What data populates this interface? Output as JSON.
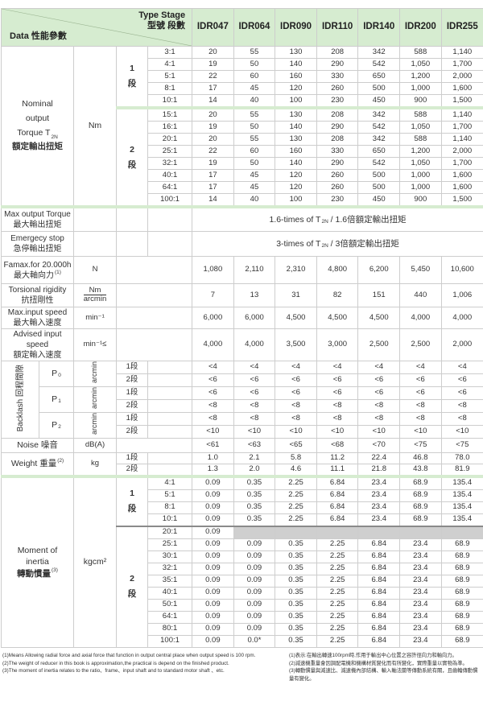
{
  "header": {
    "data_label": "Data 性能參數",
    "type_stage_en": "Type Stage",
    "type_stage_zh": "型號 段數",
    "models": [
      "IDR047",
      "IDR064",
      "IDR090",
      "IDR110",
      "IDR140",
      "IDR200",
      "IDR255"
    ],
    "accent_color": "#d6ecd0"
  },
  "torque": {
    "label_1": "Nominal",
    "label_2": "output",
    "label_3": "Torque T",
    "label_3_sub": "2N",
    "label_4": "額定輸出扭矩",
    "unit": "Nm",
    "stage1_num": "1",
    "stage1_char": "段",
    "stage2_num": "2",
    "stage2_char": "段",
    "stage1": [
      {
        "ratio": "3:1",
        "values": [
          "20",
          "55",
          "130",
          "208",
          "342",
          "588",
          "1,140"
        ]
      },
      {
        "ratio": "4:1",
        "values": [
          "19",
          "50",
          "140",
          "290",
          "542",
          "1,050",
          "1,700"
        ]
      },
      {
        "ratio": "5:1",
        "values": [
          "22",
          "60",
          "160",
          "330",
          "650",
          "1,200",
          "2,000"
        ]
      },
      {
        "ratio": "8:1",
        "values": [
          "17",
          "45",
          "120",
          "260",
          "500",
          "1,000",
          "1,600"
        ]
      },
      {
        "ratio": "10:1",
        "values": [
          "14",
          "40",
          "100",
          "230",
          "450",
          "900",
          "1,500"
        ]
      }
    ],
    "stage2": [
      {
        "ratio": "15:1",
        "values": [
          "20",
          "55",
          "130",
          "208",
          "342",
          "588",
          "1,140"
        ]
      },
      {
        "ratio": "16:1",
        "values": [
          "19",
          "50",
          "140",
          "290",
          "542",
          "1,050",
          "1,700"
        ]
      },
      {
        "ratio": "20:1",
        "values": [
          "20",
          "55",
          "130",
          "208",
          "342",
          "588",
          "1,140"
        ]
      },
      {
        "ratio": "25:1",
        "values": [
          "22",
          "60",
          "160",
          "330",
          "650",
          "1,200",
          "2,000"
        ]
      },
      {
        "ratio": "32:1",
        "values": [
          "19",
          "50",
          "140",
          "290",
          "542",
          "1,050",
          "1,700"
        ]
      },
      {
        "ratio": "40:1",
        "values": [
          "17",
          "45",
          "120",
          "260",
          "500",
          "1,000",
          "1,600"
        ]
      },
      {
        "ratio": "64:1",
        "values": [
          "17",
          "45",
          "120",
          "260",
          "500",
          "1,000",
          "1,600"
        ]
      },
      {
        "ratio": "100:1",
        "values": [
          "14",
          "40",
          "100",
          "230",
          "450",
          "900",
          "1,500"
        ]
      }
    ]
  },
  "max_torque": {
    "label_en": "Max output Torque",
    "label_zh": "最大輸出扭矩",
    "value_pre": "1.6-times of T",
    "value_sub": "2N",
    "value_post": " / 1.6倍額定輸出扭矩"
  },
  "emergency_stop": {
    "label_en": "Emergecy stop",
    "label_zh": "急停輸出扭矩",
    "value_pre": "3-times of T",
    "value_sub": "2N",
    "value_post": " / 3倍額定輸出扭矩"
  },
  "famax": {
    "label_en": "Famax.for 20.000h",
    "label_zh": "最大軸向力",
    "sup": "(1)",
    "unit": "N",
    "values": [
      "1,080",
      "2,110",
      "2,310",
      "4,800",
      "6,200",
      "5,450",
      "10,600"
    ]
  },
  "torsional": {
    "label_en": "Torsional rigidity",
    "label_zh": "抗扭剛性",
    "unit_num": "Nm",
    "unit_den": "arcmin",
    "values": [
      "7",
      "13",
      "31",
      "82",
      "151",
      "440",
      "1,006"
    ]
  },
  "max_input_speed": {
    "label_en": "Max.input speed",
    "label_zh": "最大輸入速度",
    "unit": "min⁻¹",
    "values": [
      "6,000",
      "6,000",
      "4,500",
      "4,500",
      "4,500",
      "4,000",
      "4,000"
    ]
  },
  "advised_input_speed": {
    "label_en": "Advised input speed",
    "label_zh": "額定輸入速度",
    "unit": "min⁻¹≤",
    "values": [
      "4,000",
      "4,000",
      "3,500",
      "3,000",
      "2,500",
      "2,500",
      "2,000"
    ]
  },
  "backlash": {
    "label": "Backlash 回程間隙",
    "groups": [
      {
        "name": "P",
        "sub": "0",
        "unit": "arcmin",
        "rows": [
          {
            "stage": "1段",
            "values": [
              "<4",
              "<4",
              "<4",
              "<4",
              "<4",
              "<4",
              "<4"
            ]
          },
          {
            "stage": "2段",
            "values": [
              "<6",
              "<6",
              "<6",
              "<6",
              "<6",
              "<6",
              "<6"
            ]
          }
        ]
      },
      {
        "name": "P",
        "sub": "1",
        "unit": "arcmin",
        "rows": [
          {
            "stage": "1段",
            "values": [
              "<6",
              "<6",
              "<6",
              "<6",
              "<6",
              "<6",
              "<6"
            ]
          },
          {
            "stage": "2段",
            "values": [
              "<8",
              "<8",
              "<8",
              "<8",
              "<8",
              "<8",
              "<8"
            ]
          }
        ]
      },
      {
        "name": "P",
        "sub": "2",
        "unit": "arcmin",
        "rows": [
          {
            "stage": "1段",
            "values": [
              "<8",
              "<8",
              "<8",
              "<8",
              "<8",
              "<8",
              "<8"
            ]
          },
          {
            "stage": "2段",
            "values": [
              "<10",
              "<10",
              "<10",
              "<10",
              "<10",
              "<10",
              "<10"
            ]
          }
        ]
      }
    ]
  },
  "noise": {
    "label": "Noise 噪音",
    "unit": "dB(A)",
    "values": [
      "<61",
      "<63",
      "<65",
      "<68",
      "<70",
      "<75",
      "<75"
    ]
  },
  "weight": {
    "label": "Weight 重量",
    "sup": "(2)",
    "unit": "kg",
    "rows": [
      {
        "stage": "1段",
        "values": [
          "1.0",
          "2.1",
          "5.8",
          "11.2",
          "22.4",
          "46.8",
          "78.0"
        ]
      },
      {
        "stage": "2段",
        "values": [
          "1.3",
          "2.0",
          "4.6",
          "11.1",
          "21.8",
          "43.8",
          "81.9"
        ]
      }
    ]
  },
  "inertia": {
    "label_1": "Moment of",
    "label_2": "inertia",
    "label_3": "轉動慣量",
    "sup": "(3)",
    "unit": "kgcm²",
    "stage1_num": "1",
    "stage1_char": "段",
    "stage2_num": "2",
    "stage2_char": "段",
    "stage1": [
      {
        "ratio": "4:1",
        "values": [
          "0.09",
          "0.35",
          "2.25",
          "6.84",
          "23.4",
          "68.9",
          "135.4"
        ]
      },
      {
        "ratio": "5:1",
        "values": [
          "0.09",
          "0.35",
          "2.25",
          "6.84",
          "23.4",
          "68.9",
          "135.4"
        ]
      },
      {
        "ratio": "8:1",
        "values": [
          "0.09",
          "0.35",
          "2.25",
          "6.84",
          "23.4",
          "68.9",
          "135.4"
        ]
      },
      {
        "ratio": "10:1",
        "values": [
          "0.09",
          "0.35",
          "2.25",
          "6.84",
          "23.4",
          "68.9",
          "135.4"
        ]
      }
    ],
    "stage2": [
      {
        "ratio": "20:1",
        "values": [
          "0.09",
          null,
          null,
          null,
          null,
          null,
          null
        ]
      },
      {
        "ratio": "25:1",
        "values": [
          "0.09",
          "0.09",
          "0.35",
          "2.25",
          "6.84",
          "23.4",
          "68.9"
        ]
      },
      {
        "ratio": "30:1",
        "values": [
          "0.09",
          "0.09",
          "0.35",
          "2.25",
          "6.84",
          "23.4",
          "68.9"
        ]
      },
      {
        "ratio": "32:1",
        "values": [
          "0.09",
          "0.09",
          "0.35",
          "2.25",
          "6.84",
          "23.4",
          "68.9"
        ]
      },
      {
        "ratio": "35:1",
        "values": [
          "0.09",
          "0.09",
          "0.35",
          "2.25",
          "6.84",
          "23.4",
          "68.9"
        ]
      },
      {
        "ratio": "40:1",
        "values": [
          "0.09",
          "0.09",
          "0.35",
          "2.25",
          "6.84",
          "23.4",
          "68.9"
        ]
      },
      {
        "ratio": "50:1",
        "values": [
          "0.09",
          "0.09",
          "0.35",
          "2.25",
          "6.84",
          "23.4",
          "68.9"
        ]
      },
      {
        "ratio": "64:1",
        "values": [
          "0.09",
          "0.09",
          "0.35",
          "2.25",
          "6.84",
          "23.4",
          "68.9"
        ]
      },
      {
        "ratio": "80:1",
        "values": [
          "0.09",
          "0.09",
          "0.35",
          "2.25",
          "6.84",
          "23.4",
          "68.9"
        ]
      },
      {
        "ratio": "100:1",
        "values": [
          "0.09",
          "0.0*",
          "0.35",
          "2.25",
          "6.84",
          "23.4",
          "68.9"
        ]
      }
    ]
  },
  "footnotes": {
    "en": [
      "(1)Means Allowing radial force and axial force that function in output central place when output speed is 100 rpm.",
      "(2)The weight of reducer in this book is approximation,the practical is depend on the finished product.",
      "(3)The moment of inertia relates to the ratio、frame、input shaft and to standard motor shaft 、etc."
    ],
    "zh": [
      "(1)表示:在輸出轉速100rpm時,作用于輸出中心位置之容許徑向力和軸向力。",
      "(2)減速機重量會因調配電機和機構材質變化而有所變化，實際重量以實物為準。",
      "(3)轉動慣量與減速比、減速機內部結構、輸入軸法蘭等傳動系統有關，且齒輪傳動慣量有變化。"
    ]
  }
}
